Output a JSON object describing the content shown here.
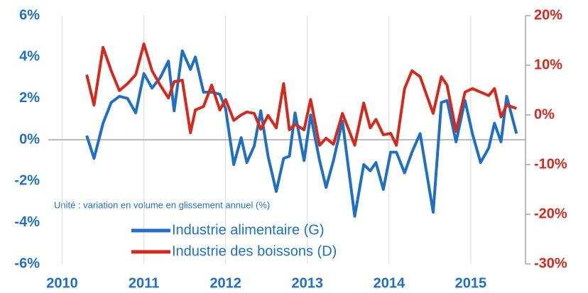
{
  "chart_data": {
    "type": "line",
    "annotation": "Unité : variation en volume en glissement annuel (%)",
    "x": [
      2010.3,
      2010.39,
      2010.5,
      2010.6,
      2010.7,
      2010.8,
      2010.9,
      2011.0,
      2011.1,
      2011.2,
      2011.3,
      2011.37,
      2011.47,
      2011.57,
      2011.63,
      2011.73,
      2011.83,
      2011.93,
      2012.0,
      2012.1,
      2012.19,
      2012.26,
      2012.35,
      2012.43,
      2012.52,
      2012.62,
      2012.71,
      2012.78,
      2012.85,
      2012.96,
      2013.04,
      2013.15,
      2013.23,
      2013.32,
      2013.43,
      2013.58,
      2013.69,
      2013.77,
      2013.84,
      2013.93,
      2014.02,
      2014.09,
      2014.19,
      2014.28,
      2014.38,
      2014.54,
      2014.64,
      2014.71,
      2014.82,
      2014.93,
      2015.02,
      2015.12,
      2015.22,
      2015.29,
      2015.37,
      2015.44,
      2015.56
    ],
    "series": [
      {
        "name": "Industrie alimentaire (G)",
        "color": "#1f6fc2",
        "axis": "y",
        "values": [
          0.2,
          -0.9,
          0.8,
          1.8,
          2.1,
          2.0,
          1.3,
          3.2,
          2.5,
          3.0,
          3.8,
          1.4,
          4.3,
          3.4,
          4.0,
          2.3,
          2.3,
          2.2,
          1.5,
          -1.2,
          0.1,
          -1.1,
          -0.3,
          1.4,
          -0.8,
          -2.5,
          -0.9,
          -0.8,
          1.3,
          -1.0,
          1.2,
          -1.0,
          -2.3,
          -1.0,
          0.9,
          -3.7,
          -1.2,
          -1.5,
          -1.1,
          -2.4,
          -0.6,
          -0.6,
          -1.6,
          -0.6,
          0.3,
          -3.5,
          1.8,
          1.9,
          -0.1,
          1.9,
          0.3,
          -1.1,
          -0.4,
          0.8,
          -0.1,
          2.1,
          0.3
        ]
      },
      {
        "name": "Industrie des boissons (D)",
        "color": "#d42a1e",
        "axis": "y2",
        "values": [
          8.1,
          2.0,
          13.6,
          8.9,
          4.9,
          6.3,
          8.1,
          14.3,
          8.9,
          6.0,
          3.4,
          6.7,
          7.0,
          -3.6,
          1.0,
          1.7,
          6.0,
          1.0,
          3.1,
          -1.1,
          0,
          0.6,
          0.3,
          -2.9,
          -0.1,
          -2.6,
          6.3,
          -3.0,
          -1.9,
          -3.0,
          3.1,
          -6.1,
          -4.7,
          -5.9,
          0.3,
          -6.1,
          2.4,
          -2.6,
          -0.9,
          -4.0,
          -3.7,
          -6.1,
          5.3,
          8.9,
          7.7,
          0.3,
          7.7,
          6.0,
          -3.3,
          4.6,
          5.3,
          4.6,
          3.9,
          5.3,
          -0.4,
          2.0,
          1.3
        ]
      }
    ],
    "xlim": [
      2009.83,
      2015.67
    ],
    "xticks": [
      2010,
      2011,
      2012,
      2013,
      2014,
      2015
    ],
    "ylim": [
      -6,
      6
    ],
    "yticks": [
      {
        "value": -6,
        "label": "-6%"
      },
      {
        "value": -4,
        "label": "-4%"
      },
      {
        "value": -2,
        "label": "-2%"
      },
      {
        "value": 0,
        "label": "0%"
      },
      {
        "value": 2,
        "label": "2%"
      },
      {
        "value": 4,
        "label": "4%"
      },
      {
        "value": 6,
        "label": "6%"
      }
    ],
    "y2lim": [
      -30,
      20
    ],
    "y2ticks": [
      {
        "value": -30,
        "label": "-30%"
      },
      {
        "value": -20,
        "label": "-20%"
      },
      {
        "value": -10,
        "label": "-10%"
      },
      {
        "value": 0,
        "label": "0%"
      },
      {
        "value": 10,
        "label": "10%"
      },
      {
        "value": 20,
        "label": "20%"
      }
    ],
    "grid": true,
    "legend": "lower center"
  }
}
